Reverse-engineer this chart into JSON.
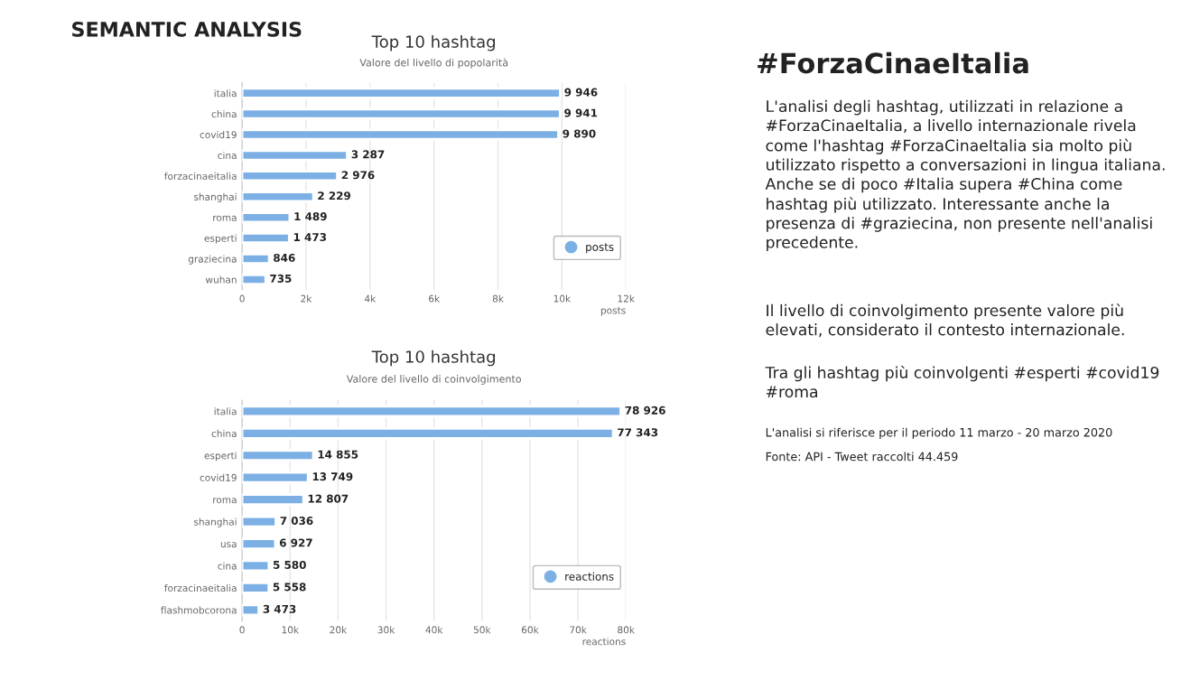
{
  "chart_data": [
    {
      "type": "other",
      "title": "SEMANTIC ANALYSIS"
    },
    {
      "type": "bar",
      "orientation": "horizontal",
      "title": "Top 10 hashtag",
      "subtitle": "Valore del livello di popolarità",
      "xlabel": "posts",
      "categories": [
        "italia",
        "china",
        "covid19",
        "cina",
        "forzacinaeitalia",
        "shanghai",
        "roma",
        "esperti",
        "graziecina",
        "wuhan"
      ],
      "series": [
        {
          "name": "posts",
          "color": "#7cb0e4",
          "values": [
            9946,
            9941,
            9890,
            3287,
            2976,
            2229,
            1489,
            1473,
            846,
            735
          ],
          "value_labels": [
            "9 946",
            "9 941",
            "9 890",
            "3 287",
            "2 976",
            "2 229",
            "1 489",
            "1 473",
            "846",
            "735"
          ]
        }
      ],
      "xlim": [
        0,
        12000
      ],
      "xticks": [
        0,
        {
          "value": 2000,
          "label": "2k"
        },
        {
          "value": 4000,
          "label": "4k"
        },
        {
          "value": 6000,
          "label": "6k"
        },
        {
          "value": 8000,
          "label": "8k"
        },
        {
          "value": 10000,
          "label": "10k"
        },
        {
          "value": 12000,
          "label": "12k"
        }
      ],
      "grid": "x",
      "legend": "bottom right",
      "marker": "circle"
    },
    {
      "type": "bar",
      "orientation": "horizontal",
      "title": "Top 10 hashtag",
      "subtitle": "Valore del livello di coinvolgimento",
      "xlabel": "reactions",
      "categories": [
        "italia",
        "china",
        "esperti",
        "covid19",
        "roma",
        "shanghai",
        "usa",
        "cina",
        "forzacinaeitalia",
        "flashmobcorona"
      ],
      "series": [
        {
          "name": "reactions",
          "color": "#7cb0e4",
          "values": [
            78926,
            77343,
            14855,
            13749,
            12807,
            7036,
            6927,
            5580,
            5558,
            3473
          ],
          "value_labels": [
            "78 926",
            "77 343",
            "14 855",
            "13 749",
            "12 807",
            "7 036",
            "6 927",
            "5 580",
            "5 558",
            "3 473"
          ]
        }
      ],
      "xlim": [
        0,
        80000
      ],
      "xticks": [
        0,
        {
          "value": 10000,
          "label": "10k"
        },
        {
          "value": 20000,
          "label": "20k"
        },
        {
          "value": 30000,
          "label": "30k"
        },
        {
          "value": 40000,
          "label": "40k"
        },
        {
          "value": 50000,
          "label": "50k"
        },
        {
          "value": 60000,
          "label": "60k"
        },
        {
          "value": 70000,
          "label": "70k"
        },
        {
          "value": 80000,
          "label": "80k"
        }
      ],
      "grid": "x",
      "legend": "bottom right",
      "marker": "circle"
    },
    {
      "type": "other",
      "title": "#ForzaCinaeItalia",
      "annotations": [
        "L'analisi degli hashtag, utilizzati in relazione a #ForzaCinaeItalia, a livello internazionale rivela come l'hashtag #ForzaCinaeItalia sia molto più utilizzato rispetto a conversazioni in lingua italiana. Anche se di poco #Italia supera #China come hashtag più utilizzato. Interessante anche la presenza di #graziecina, non presente nell'analisi precedente.",
        "Il livello di coinvolgimento presente valore più elevati, considerato il contesto internazionale.",
        "Tra gli hashtag più coinvolgenti #esperti #covid19 #roma",
        "L'analisi si riferisce per il periodo 11 marzo - 20 marzo 2020",
        "Fonte: API - Tweet raccolti 44.459"
      ]
    }
  ]
}
